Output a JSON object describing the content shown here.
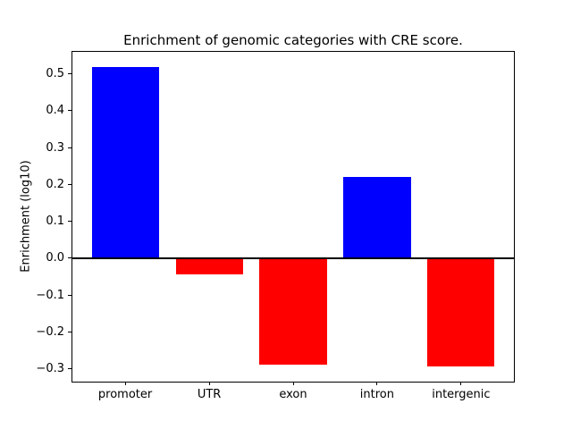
{
  "chart_data": {
    "type": "bar",
    "title": "Enrichment of genomic categories with CRE score.",
    "xlabel": "",
    "ylabel": "Enrichment (log10)",
    "categories": [
      "promoter",
      "UTR",
      "exon",
      "intron",
      "intergenic"
    ],
    "values": [
      0.52,
      -0.045,
      -0.29,
      0.22,
      -0.295
    ],
    "bar_colors": [
      "#0000ff",
      "#ff0000",
      "#ff0000",
      "#0000ff",
      "#ff0000"
    ],
    "positive_color": "#0000ff",
    "negative_color": "#ff0000",
    "bar_width": 0.8,
    "xlim": [
      -0.64,
      4.64
    ],
    "ylim": [
      -0.336,
      0.561
    ],
    "y_ticks": [
      0.5,
      0.4,
      0.3,
      0.2,
      0.1,
      0.0,
      -0.1,
      -0.2,
      -0.3
    ],
    "y_tick_labels": [
      "0.5",
      "0.4",
      "0.3",
      "0.2",
      "0.1",
      "0.0",
      "−0.1",
      "−0.2",
      "−0.3"
    ],
    "zero_line": true,
    "grid": false,
    "legend_position": "none"
  }
}
